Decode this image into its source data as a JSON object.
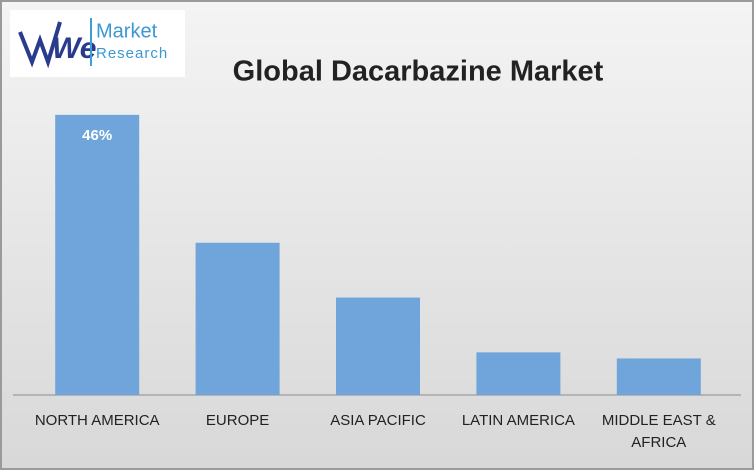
{
  "logo": {
    "mark": "We",
    "name": "Market",
    "tagline": "Research"
  },
  "chart_data": {
    "type": "bar",
    "title": "Global Dacarbazine Market",
    "categories": [
      "NORTH AMERICA",
      "EUROPE",
      "ASIA PACIFIC",
      "LATIN AMERICA",
      "MIDDLE EAST & AFRICA"
    ],
    "values": [
      46,
      25,
      16,
      7,
      6
    ],
    "value_labels": [
      "46%",
      null,
      null,
      null,
      null
    ],
    "color": "#6fa5da"
  }
}
